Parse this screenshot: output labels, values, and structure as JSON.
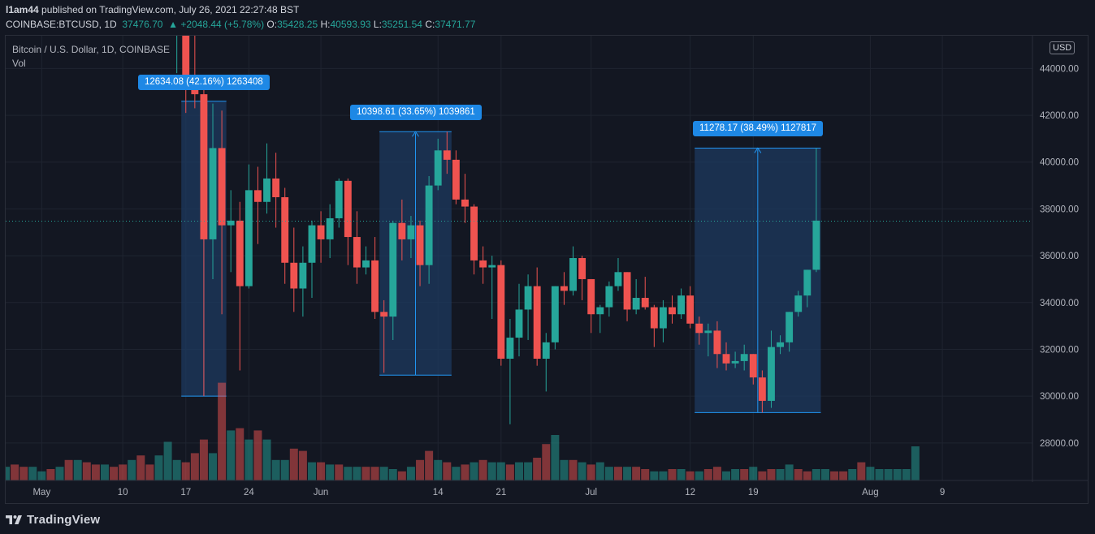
{
  "publish": {
    "user": "l1am44",
    "text": " published on TradingView.com, July 26, 2021 22:27:48 BST"
  },
  "ohlc": {
    "symbol": "COINBASE:BTCUSD, 1D",
    "last": "37476.70",
    "change": "▲ +2048.44 (+5.78%)",
    "o_label": "O:",
    "o": "35428.25",
    "h_label": "H:",
    "h": "40593.93",
    "l_label": "L:",
    "l": "35251.54",
    "c_label": "C:",
    "c": "37471.77"
  },
  "legend": {
    "title": "Bitcoin / U.S. Dollar, 1D, COINBASE",
    "vol": "Vol"
  },
  "currency_badge": "USD",
  "footer": {
    "logo_text": "TradingView"
  },
  "colors": {
    "background": "#131722",
    "grid": "#1f2430",
    "up": "#26a69a",
    "down": "#ef5350",
    "measure_fill": "#1e3a5f",
    "measure_line": "#2196f3",
    "label_bg": "#1e88e5"
  },
  "chart_data": {
    "type": "candlestick",
    "title": "Bitcoin / U.S. Dollar, 1D, COINBASE",
    "y_ticks": [
      "44000.00",
      "42000.00",
      "40000.00",
      "38000.00",
      "36000.00",
      "34000.00",
      "32000.00",
      "30000.00",
      "28000.00"
    ],
    "y_tick_values": [
      44000,
      42000,
      40000,
      38000,
      36000,
      34000,
      32000,
      30000,
      28000
    ],
    "ylim": [
      26400,
      45400
    ],
    "x_ticks": [
      {
        "label": "May",
        "date": "2021-05-01"
      },
      {
        "label": "10",
        "date": "2021-05-10"
      },
      {
        "label": "17",
        "date": "2021-05-17"
      },
      {
        "label": "24",
        "date": "2021-05-24"
      },
      {
        "label": "Jun",
        "date": "2021-06-01"
      },
      {
        "label": "14",
        "date": "2021-06-14"
      },
      {
        "label": "21",
        "date": "2021-06-21"
      },
      {
        "label": "Jul",
        "date": "2021-07-01"
      },
      {
        "label": "12",
        "date": "2021-07-12"
      },
      {
        "label": "19",
        "date": "2021-07-19"
      },
      {
        "label": "Aug",
        "date": "2021-08-01"
      },
      {
        "label": "9",
        "date": "2021-08-09"
      }
    ],
    "xlim": [
      "2021-04-27",
      "2021-08-19"
    ],
    "price_line": 37476.7,
    "candles": [
      {
        "date": "2021-05-16",
        "o": 46400,
        "h": 49000,
        "l": 43800,
        "c": 46400
      },
      {
        "date": "2021-05-17",
        "o": 46400,
        "h": 46600,
        "l": 42100,
        "c": 43300
      },
      {
        "date": "2021-05-18",
        "o": 43300,
        "h": 45500,
        "l": 42300,
        "c": 42900
      },
      {
        "date": "2021-05-19",
        "o": 42900,
        "h": 43500,
        "l": 30000,
        "c": 36700
      },
      {
        "date": "2021-05-20",
        "o": 36700,
        "h": 42500,
        "l": 35000,
        "c": 40600
      },
      {
        "date": "2021-05-21",
        "o": 40600,
        "h": 42200,
        "l": 33500,
        "c": 37300
      },
      {
        "date": "2021-05-22",
        "o": 37300,
        "h": 38800,
        "l": 35300,
        "c": 37500
      },
      {
        "date": "2021-05-23",
        "o": 37500,
        "h": 38300,
        "l": 31100,
        "c": 34700
      },
      {
        "date": "2021-05-24",
        "o": 34700,
        "h": 39900,
        "l": 34600,
        "c": 38800
      },
      {
        "date": "2021-05-25",
        "o": 38800,
        "h": 39800,
        "l": 36500,
        "c": 38300
      },
      {
        "date": "2021-05-26",
        "o": 38300,
        "h": 40800,
        "l": 37800,
        "c": 39300
      },
      {
        "date": "2021-05-27",
        "o": 39300,
        "h": 40400,
        "l": 37200,
        "c": 38500
      },
      {
        "date": "2021-05-28",
        "o": 38500,
        "h": 38900,
        "l": 34800,
        "c": 35700
      },
      {
        "date": "2021-05-29",
        "o": 35700,
        "h": 37200,
        "l": 33600,
        "c": 34600
      },
      {
        "date": "2021-05-30",
        "o": 34600,
        "h": 36400,
        "l": 33400,
        "c": 35700
      },
      {
        "date": "2021-05-31",
        "o": 35700,
        "h": 37500,
        "l": 34200,
        "c": 37300
      },
      {
        "date": "2021-06-01",
        "o": 37300,
        "h": 37900,
        "l": 35700,
        "c": 36700
      },
      {
        "date": "2021-06-02",
        "o": 36700,
        "h": 38200,
        "l": 35900,
        "c": 37600
      },
      {
        "date": "2021-06-03",
        "o": 37600,
        "h": 39300,
        "l": 37200,
        "c": 39200
      },
      {
        "date": "2021-06-04",
        "o": 39200,
        "h": 39300,
        "l": 35600,
        "c": 36800
      },
      {
        "date": "2021-06-05",
        "o": 36800,
        "h": 37900,
        "l": 34800,
        "c": 35500
      },
      {
        "date": "2021-06-06",
        "o": 35500,
        "h": 36400,
        "l": 35200,
        "c": 35800
      },
      {
        "date": "2021-06-07",
        "o": 35800,
        "h": 36800,
        "l": 33300,
        "c": 33600
      },
      {
        "date": "2021-06-08",
        "o": 33600,
        "h": 34100,
        "l": 31000,
        "c": 33400
      },
      {
        "date": "2021-06-09",
        "o": 33400,
        "h": 37500,
        "l": 32400,
        "c": 37400
      },
      {
        "date": "2021-06-10",
        "o": 37400,
        "h": 38400,
        "l": 35800,
        "c": 36700
      },
      {
        "date": "2021-06-11",
        "o": 36700,
        "h": 37700,
        "l": 35900,
        "c": 37300
      },
      {
        "date": "2021-06-12",
        "o": 37300,
        "h": 37500,
        "l": 34700,
        "c": 35600
      },
      {
        "date": "2021-06-13",
        "o": 35600,
        "h": 39400,
        "l": 34800,
        "c": 39000
      },
      {
        "date": "2021-06-14",
        "o": 39000,
        "h": 41000,
        "l": 38800,
        "c": 40500
      },
      {
        "date": "2021-06-15",
        "o": 40500,
        "h": 41300,
        "l": 39500,
        "c": 40100
      },
      {
        "date": "2021-06-16",
        "o": 40100,
        "h": 40500,
        "l": 38200,
        "c": 38400
      },
      {
        "date": "2021-06-17",
        "o": 38400,
        "h": 39500,
        "l": 37400,
        "c": 38100
      },
      {
        "date": "2021-06-18",
        "o": 38100,
        "h": 38200,
        "l": 35200,
        "c": 35800
      },
      {
        "date": "2021-06-19",
        "o": 35800,
        "h": 36400,
        "l": 34800,
        "c": 35500
      },
      {
        "date": "2021-06-20",
        "o": 35500,
        "h": 36000,
        "l": 33300,
        "c": 35600
      },
      {
        "date": "2021-06-21",
        "o": 35600,
        "h": 35800,
        "l": 31300,
        "c": 31600
      },
      {
        "date": "2021-06-22",
        "o": 31600,
        "h": 33300,
        "l": 28800,
        "c": 32500
      },
      {
        "date": "2021-06-23",
        "o": 32500,
        "h": 34800,
        "l": 31700,
        "c": 33700
      },
      {
        "date": "2021-06-24",
        "o": 33700,
        "h": 35200,
        "l": 32400,
        "c": 34700
      },
      {
        "date": "2021-06-25",
        "o": 34700,
        "h": 35500,
        "l": 31300,
        "c": 31600
      },
      {
        "date": "2021-06-26",
        "o": 31600,
        "h": 32700,
        "l": 30200,
        "c": 32300
      },
      {
        "date": "2021-06-27",
        "o": 32300,
        "h": 34700,
        "l": 32000,
        "c": 34700
      },
      {
        "date": "2021-06-28",
        "o": 34700,
        "h": 35300,
        "l": 33900,
        "c": 34500
      },
      {
        "date": "2021-06-29",
        "o": 34500,
        "h": 36400,
        "l": 34300,
        "c": 35900
      },
      {
        "date": "2021-06-30",
        "o": 35900,
        "h": 36000,
        "l": 34100,
        "c": 35000
      },
      {
        "date": "2021-07-01",
        "o": 35000,
        "h": 35000,
        "l": 32700,
        "c": 33500
      },
      {
        "date": "2021-07-02",
        "o": 33500,
        "h": 33900,
        "l": 32700,
        "c": 33800
      },
      {
        "date": "2021-07-03",
        "o": 33800,
        "h": 34900,
        "l": 33400,
        "c": 34700
      },
      {
        "date": "2021-07-04",
        "o": 34700,
        "h": 35900,
        "l": 34500,
        "c": 35300
      },
      {
        "date": "2021-07-05",
        "o": 35300,
        "h": 35300,
        "l": 33200,
        "c": 33700
      },
      {
        "date": "2021-07-06",
        "o": 33700,
        "h": 35000,
        "l": 33500,
        "c": 34200
      },
      {
        "date": "2021-07-07",
        "o": 34200,
        "h": 35100,
        "l": 33700,
        "c": 33800
      },
      {
        "date": "2021-07-08",
        "o": 33800,
        "h": 33900,
        "l": 32100,
        "c": 32900
      },
      {
        "date": "2021-07-09",
        "o": 32900,
        "h": 34100,
        "l": 32300,
        "c": 33800
      },
      {
        "date": "2021-07-10",
        "o": 33800,
        "h": 34300,
        "l": 33100,
        "c": 33500
      },
      {
        "date": "2021-07-11",
        "o": 33500,
        "h": 34600,
        "l": 33300,
        "c": 34300
      },
      {
        "date": "2021-07-12",
        "o": 34300,
        "h": 34700,
        "l": 32900,
        "c": 33100
      },
      {
        "date": "2021-07-13",
        "o": 33100,
        "h": 33400,
        "l": 32200,
        "c": 32700
      },
      {
        "date": "2021-07-14",
        "o": 32700,
        "h": 33100,
        "l": 31700,
        "c": 32800
      },
      {
        "date": "2021-07-15",
        "o": 32800,
        "h": 33200,
        "l": 31200,
        "c": 31800
      },
      {
        "date": "2021-07-16",
        "o": 31800,
        "h": 32300,
        "l": 31100,
        "c": 31400
      },
      {
        "date": "2021-07-17",
        "o": 31400,
        "h": 31900,
        "l": 31200,
        "c": 31500
      },
      {
        "date": "2021-07-18",
        "o": 31500,
        "h": 32200,
        "l": 31100,
        "c": 31800
      },
      {
        "date": "2021-07-19",
        "o": 31800,
        "h": 31800,
        "l": 30500,
        "c": 30800
      },
      {
        "date": "2021-07-20",
        "o": 30800,
        "h": 31100,
        "l": 29300,
        "c": 29800
      },
      {
        "date": "2021-07-21",
        "o": 29800,
        "h": 32800,
        "l": 29500,
        "c": 32100
      },
      {
        "date": "2021-07-22",
        "o": 32100,
        "h": 32600,
        "l": 31800,
        "c": 32300
      },
      {
        "date": "2021-07-23",
        "o": 32300,
        "h": 33600,
        "l": 31900,
        "c": 33600
      },
      {
        "date": "2021-07-24",
        "o": 33600,
        "h": 34500,
        "l": 33400,
        "c": 34300
      },
      {
        "date": "2021-07-25",
        "o": 34300,
        "h": 35400,
        "l": 33800,
        "c": 35400
      },
      {
        "date": "2021-07-26",
        "o": 35400,
        "h": 40600,
        "l": 35300,
        "c": 37500
      }
    ],
    "volume_series": [
      {
        "date": "2021-04-27",
        "v": 6,
        "up": true
      },
      {
        "date": "2021-04-28",
        "v": 7,
        "up": false
      },
      {
        "date": "2021-04-29",
        "v": 6,
        "up": false
      },
      {
        "date": "2021-04-30",
        "v": 6,
        "up": true
      },
      {
        "date": "2021-05-01",
        "v": 4,
        "up": true
      },
      {
        "date": "2021-05-02",
        "v": 5,
        "up": false
      },
      {
        "date": "2021-05-03",
        "v": 6,
        "up": true
      },
      {
        "date": "2021-05-04",
        "v": 9,
        "up": false
      },
      {
        "date": "2021-05-05",
        "v": 9,
        "up": true
      },
      {
        "date": "2021-05-06",
        "v": 8,
        "up": false
      },
      {
        "date": "2021-05-07",
        "v": 7,
        "up": false
      },
      {
        "date": "2021-05-08",
        "v": 7,
        "up": true
      },
      {
        "date": "2021-05-09",
        "v": 6,
        "up": false
      },
      {
        "date": "2021-05-10",
        "v": 7,
        "up": false
      },
      {
        "date": "2021-05-11",
        "v": 9,
        "up": true
      },
      {
        "date": "2021-05-12",
        "v": 11,
        "up": false
      },
      {
        "date": "2021-05-13",
        "v": 7,
        "up": false
      },
      {
        "date": "2021-05-14",
        "v": 11,
        "up": true
      },
      {
        "date": "2021-05-15",
        "v": 17,
        "up": true
      },
      {
        "date": "2021-05-16",
        "v": 9,
        "up": true
      },
      {
        "date": "2021-05-17",
        "v": 8,
        "up": false
      },
      {
        "date": "2021-05-18",
        "v": 12,
        "up": false
      },
      {
        "date": "2021-05-19",
        "v": 18,
        "up": false
      },
      {
        "date": "2021-05-20",
        "v": 12,
        "up": true
      },
      {
        "date": "2021-05-21",
        "v": 43,
        "up": false
      },
      {
        "date": "2021-05-22",
        "v": 22,
        "up": true
      },
      {
        "date": "2021-05-23",
        "v": 23,
        "up": false
      },
      {
        "date": "2021-05-24",
        "v": 18,
        "up": true
      },
      {
        "date": "2021-05-25",
        "v": 22,
        "up": false
      },
      {
        "date": "2021-05-26",
        "v": 18,
        "up": true
      },
      {
        "date": "2021-05-27",
        "v": 9,
        "up": true
      },
      {
        "date": "2021-05-28",
        "v": 9,
        "up": true
      },
      {
        "date": "2021-05-29",
        "v": 14,
        "up": false
      },
      {
        "date": "2021-05-30",
        "v": 13,
        "up": false
      },
      {
        "date": "2021-05-31",
        "v": 8,
        "up": true
      },
      {
        "date": "2021-06-01",
        "v": 8,
        "up": false
      }
    ],
    "volume_bars": [
      6,
      7,
      6,
      6,
      4,
      5,
      6,
      9,
      9,
      8,
      7,
      7,
      6,
      7,
      9,
      11,
      7,
      11,
      17,
      9,
      8,
      12,
      18,
      12,
      43,
      22,
      23,
      18,
      22,
      18,
      9,
      9,
      14,
      13,
      8,
      8,
      7,
      7,
      6,
      6,
      6,
      6,
      6,
      5,
      4,
      6,
      9,
      13,
      9,
      8,
      6,
      7,
      8,
      9,
      8,
      8,
      7,
      8,
      8,
      10,
      16,
      20,
      9,
      9,
      8,
      7,
      8,
      6,
      6,
      6,
      6,
      5,
      4,
      4,
      5,
      5,
      4,
      4,
      5,
      6,
      4,
      5,
      5,
      6,
      4,
      5,
      5,
      7,
      5,
      4,
      5,
      5,
      4,
      4,
      5,
      8,
      6,
      5,
      5,
      5,
      5,
      15
    ],
    "volume_up": [
      true,
      false,
      false,
      true,
      true,
      false,
      true,
      false,
      true,
      false,
      false,
      true,
      false,
      false,
      true,
      false,
      false,
      true,
      true,
      true,
      false,
      false,
      false,
      true,
      false,
      true,
      false,
      true,
      false,
      true,
      true,
      true,
      false,
      false,
      true,
      false,
      true,
      false,
      true,
      true,
      false,
      false,
      true,
      true,
      false,
      true,
      false,
      false,
      true,
      false,
      true,
      false,
      true,
      false,
      true,
      true,
      false,
      true,
      true,
      false,
      false,
      true,
      true,
      false,
      true,
      false,
      true,
      true,
      false,
      true,
      false,
      false,
      true,
      true,
      false,
      true,
      false,
      true,
      false,
      false,
      true,
      true,
      false,
      true,
      false,
      false,
      true,
      true,
      false,
      false,
      true,
      true,
      false,
      false,
      true,
      false,
      true,
      true,
      true,
      true,
      true,
      true
    ],
    "measures": [
      {
        "from_date": "2021-05-17",
        "to_date": "2021-05-21",
        "low": 30000,
        "high": 42600,
        "label": "12634.08 (42.16%) 1263408",
        "label_visible": "12634.08 (4",
        "label_tail": "16%) 1263408"
      },
      {
        "from_date": "2021-06-08",
        "to_date": "2021-06-15",
        "low": 30900,
        "high": 41300,
        "label": "10398.61 (33.65%) 1039861"
      },
      {
        "from_date": "2021-07-13",
        "to_date": "2021-07-26",
        "low": 29300,
        "high": 40600,
        "label": "11278.17 (38.49%) 1127817"
      }
    ]
  }
}
